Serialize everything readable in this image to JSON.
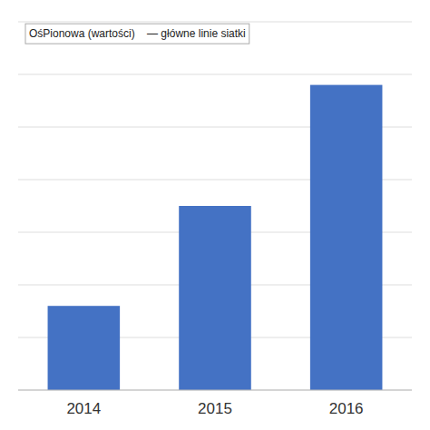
{
  "chart_data": {
    "type": "bar",
    "categories": [
      "2014",
      "2015",
      "2016"
    ],
    "values": [
      16,
      35,
      58
    ],
    "color": "#4472C4",
    "ylim": [
      0,
      70
    ],
    "yticks": [
      0,
      10,
      20,
      30,
      40,
      50,
      60,
      70
    ],
    "grid": true,
    "tick_labels": "x",
    "annotation": "OśPionowa (wartości)    — główne linie siatki"
  }
}
